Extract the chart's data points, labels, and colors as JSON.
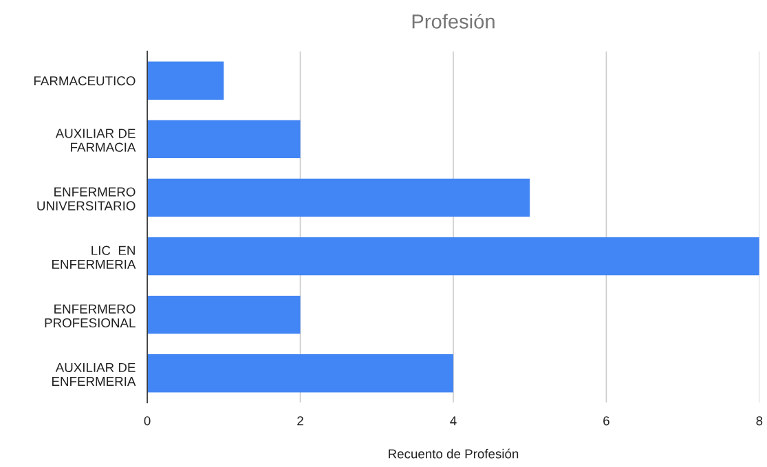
{
  "chart_data": {
    "type": "bar",
    "orientation": "horizontal",
    "title": "Profesión",
    "xlabel": "Recuento de Profesión",
    "categories": [
      "FARMACEUTICO",
      "AUXILIAR DE\nFARMACIA",
      "ENFERMERO\nUNIVERSITARIO",
      "LIC  EN\nENFERMERIA",
      "ENFERMERO\nPROFESIONAL",
      "AUXILIAR DE\nENFERMERIA"
    ],
    "values": [
      1,
      2,
      5,
      8,
      2,
      4
    ],
    "color": "#4285f4",
    "xlim": [
      0,
      8
    ],
    "xticks": [
      0,
      2,
      4,
      6,
      8
    ],
    "grid": "x",
    "legend": false
  }
}
